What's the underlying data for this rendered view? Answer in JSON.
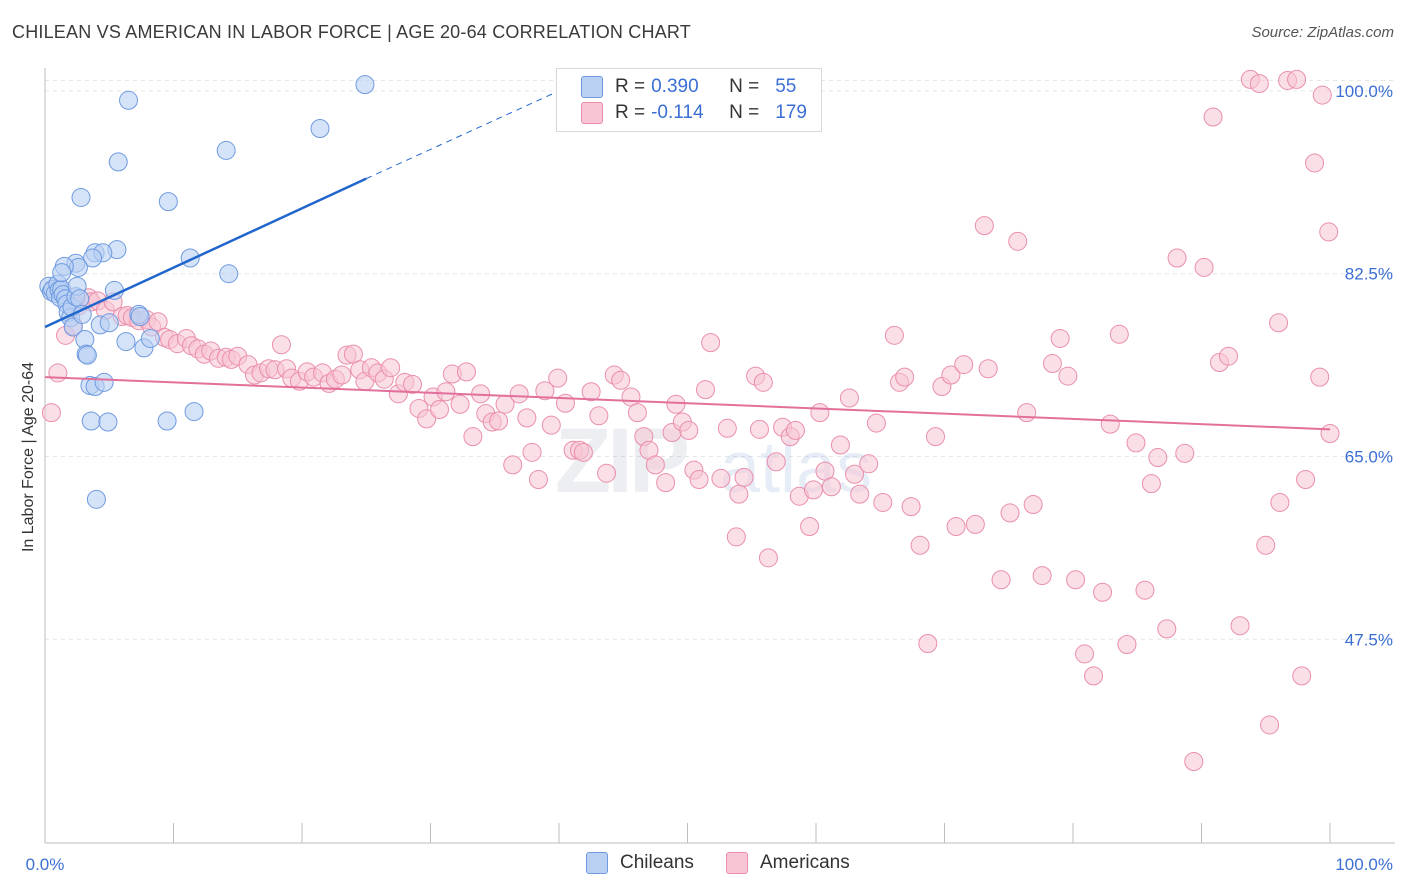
{
  "title": "CHILEAN VS AMERICAN IN LABOR FORCE | AGE 20-64 CORRELATION CHART",
  "source": "Source: ZipAtlas.com",
  "colors": {
    "chilean_fill": "#b9d0f3",
    "chilean_stroke": "#6f9ae0",
    "chilean_line": "#2166cc",
    "american_fill": "#f8c5d4",
    "american_stroke": "#ea8fac",
    "american_line": "#e2709a",
    "tick_label": "#3b6fd4",
    "grid": "#e6e6e6"
  },
  "legend": {
    "rows": [
      {
        "r_label": "R =",
        "r_value": "0.390",
        "n_label": "N =",
        "n_value": "55"
      },
      {
        "r_label": "R =",
        "r_value": "-0.114",
        "n_label": "N =",
        "n_value": "179"
      }
    ]
  },
  "bottom_legend": [
    "Chileans",
    "Americans"
  ],
  "watermark": {
    "a": "ZIP",
    "b": "atlas"
  },
  "chart_data": {
    "type": "scatter",
    "ylabel": "In Labor Force | Age 20-64",
    "xlabel": "",
    "xlim": [
      0,
      100
    ],
    "ylim": [
      28,
      102
    ],
    "x_tick_labels": [
      "0.0%",
      "100.0%"
    ],
    "y_ticks": [
      {
        "value": 47.5,
        "label": "47.5%"
      },
      {
        "value": 65.0,
        "label": "65.0%"
      },
      {
        "value": 82.5,
        "label": "82.5%"
      },
      {
        "value": 100.0,
        "label": "100.0%"
      }
    ],
    "series": [
      {
        "name": "Chileans",
        "r": 0.39,
        "n": 55,
        "trend": {
          "x0": 0,
          "y0": 77.4,
          "x1": 25,
          "y1": 91.6,
          "dash_to_x": 40,
          "dash_to_y": 100.0
        },
        "points": [
          [
            0.3,
            81.3
          ],
          [
            0.5,
            80.8
          ],
          [
            0.6,
            81.0
          ],
          [
            0.8,
            80.6
          ],
          [
            1.0,
            81.5
          ],
          [
            1.1,
            80.9
          ],
          [
            1.2,
            80.2
          ],
          [
            1.3,
            81.0
          ],
          [
            1.4,
            80.5
          ],
          [
            1.6,
            80.1
          ],
          [
            1.7,
            79.6
          ],
          [
            1.8,
            78.8
          ],
          [
            2.0,
            78.3
          ],
          [
            2.1,
            79.3
          ],
          [
            2.2,
            77.4
          ],
          [
            2.4,
            80.3
          ],
          [
            2.5,
            81.3
          ],
          [
            2.7,
            80.1
          ],
          [
            2.9,
            78.6
          ],
          [
            3.1,
            76.2
          ],
          [
            3.2,
            74.8
          ],
          [
            3.3,
            74.7
          ],
          [
            3.5,
            71.8
          ],
          [
            3.6,
            68.4
          ],
          [
            3.9,
            71.7
          ],
          [
            4.0,
            60.9
          ],
          [
            4.3,
            77.6
          ],
          [
            4.6,
            72.1
          ],
          [
            4.9,
            68.3
          ],
          [
            5.0,
            77.8
          ],
          [
            5.4,
            80.9
          ],
          [
            5.6,
            84.8
          ],
          [
            5.7,
            93.2
          ],
          [
            3.9,
            84.5
          ],
          [
            4.5,
            84.5
          ],
          [
            3.7,
            84.0
          ],
          [
            2.4,
            83.5
          ],
          [
            2.6,
            83.1
          ],
          [
            1.5,
            83.2
          ],
          [
            1.3,
            82.6
          ],
          [
            2.8,
            89.8
          ],
          [
            6.5,
            99.1
          ],
          [
            6.3,
            76.0
          ],
          [
            7.3,
            78.6
          ],
          [
            7.7,
            75.4
          ],
          [
            8.2,
            76.3
          ],
          [
            9.6,
            89.4
          ],
          [
            9.5,
            68.4
          ],
          [
            11.3,
            84.0
          ],
          [
            11.6,
            69.3
          ],
          [
            14.1,
            94.3
          ],
          [
            14.3,
            82.5
          ],
          [
            21.4,
            96.4
          ],
          [
            24.9,
            100.6
          ],
          [
            7.4,
            78.4
          ]
        ]
      },
      {
        "name": "Americans",
        "r": -0.114,
        "n": 179,
        "trend": {
          "x0": 0,
          "y0": 72.6,
          "x1": 100,
          "y1": 67.6
        },
        "points": [
          [
            0.5,
            69.2
          ],
          [
            1.0,
            73.0
          ],
          [
            1.6,
            76.6
          ],
          [
            2.2,
            77.5
          ],
          [
            2.6,
            79.4
          ],
          [
            3.4,
            80.2
          ],
          [
            3.6,
            79.8
          ],
          [
            4.1,
            79.9
          ],
          [
            4.7,
            79.0
          ],
          [
            5.3,
            79.8
          ],
          [
            6.0,
            78.4
          ],
          [
            6.4,
            78.5
          ],
          [
            6.8,
            78.3
          ],
          [
            7.3,
            78.0
          ],
          [
            7.9,
            78.1
          ],
          [
            8.3,
            77.4
          ],
          [
            8.8,
            77.9
          ],
          [
            9.3,
            76.4
          ],
          [
            9.7,
            76.2
          ],
          [
            10.3,
            75.8
          ],
          [
            11.0,
            76.3
          ],
          [
            11.4,
            75.6
          ],
          [
            11.9,
            75.3
          ],
          [
            12.4,
            74.8
          ],
          [
            12.9,
            75.1
          ],
          [
            13.5,
            74.4
          ],
          [
            14.1,
            74.5
          ],
          [
            14.5,
            74.3
          ],
          [
            15.0,
            74.6
          ],
          [
            15.8,
            73.8
          ],
          [
            16.3,
            72.8
          ],
          [
            16.8,
            73.0
          ],
          [
            17.4,
            73.4
          ],
          [
            17.9,
            73.3
          ],
          [
            18.4,
            75.7
          ],
          [
            18.8,
            73.4
          ],
          [
            19.2,
            72.5
          ],
          [
            19.8,
            72.2
          ],
          [
            20.4,
            73.1
          ],
          [
            20.9,
            72.6
          ],
          [
            21.6,
            73.0
          ],
          [
            22.1,
            72.0
          ],
          [
            22.6,
            72.4
          ],
          [
            23.1,
            72.8
          ],
          [
            23.5,
            74.7
          ],
          [
            24.0,
            74.8
          ],
          [
            24.5,
            73.3
          ],
          [
            24.9,
            72.2
          ],
          [
            25.4,
            73.5
          ],
          [
            25.9,
            73.0
          ],
          [
            26.4,
            72.4
          ],
          [
            26.9,
            73.5
          ],
          [
            27.5,
            71.0
          ],
          [
            28.0,
            72.1
          ],
          [
            28.6,
            71.9
          ],
          [
            29.1,
            69.6
          ],
          [
            29.7,
            68.6
          ],
          [
            30.2,
            70.7
          ],
          [
            30.7,
            69.5
          ],
          [
            31.2,
            71.2
          ],
          [
            31.7,
            72.9
          ],
          [
            32.3,
            70.0
          ],
          [
            32.8,
            73.1
          ],
          [
            33.3,
            66.9
          ],
          [
            33.9,
            71.0
          ],
          [
            34.3,
            69.1
          ],
          [
            34.8,
            68.3
          ],
          [
            35.3,
            68.4
          ],
          [
            35.8,
            70.0
          ],
          [
            36.4,
            64.2
          ],
          [
            36.9,
            71.0
          ],
          [
            37.5,
            68.7
          ],
          [
            37.9,
            65.4
          ],
          [
            38.4,
            62.8
          ],
          [
            38.9,
            71.3
          ],
          [
            39.4,
            68.0
          ],
          [
            39.9,
            72.5
          ],
          [
            40.5,
            70.1
          ],
          [
            41.1,
            65.6
          ],
          [
            41.6,
            65.6
          ],
          [
            41.9,
            65.4
          ],
          [
            42.5,
            71.2
          ],
          [
            43.1,
            68.9
          ],
          [
            43.7,
            63.4
          ],
          [
            44.3,
            72.8
          ],
          [
            44.8,
            72.3
          ],
          [
            45.6,
            70.7
          ],
          [
            46.1,
            69.2
          ],
          [
            46.6,
            66.9
          ],
          [
            47.0,
            65.6
          ],
          [
            47.5,
            64.2
          ],
          [
            48.3,
            62.5
          ],
          [
            48.8,
            67.3
          ],
          [
            49.1,
            70.0
          ],
          [
            49.6,
            68.3
          ],
          [
            50.1,
            67.5
          ],
          [
            50.5,
            63.7
          ],
          [
            50.9,
            62.8
          ],
          [
            51.4,
            71.4
          ],
          [
            51.8,
            75.9
          ],
          [
            52.6,
            62.9
          ],
          [
            53.1,
            67.7
          ],
          [
            53.8,
            57.3
          ],
          [
            54.0,
            61.4
          ],
          [
            54.4,
            63.0
          ],
          [
            55.3,
            72.7
          ],
          [
            55.6,
            67.6
          ],
          [
            55.9,
            72.1
          ],
          [
            56.3,
            55.3
          ],
          [
            56.9,
            64.5
          ],
          [
            57.4,
            67.8
          ],
          [
            58.0,
            66.9
          ],
          [
            58.4,
            67.5
          ],
          [
            58.7,
            61.2
          ],
          [
            59.5,
            58.3
          ],
          [
            59.8,
            61.8
          ],
          [
            60.3,
            69.2
          ],
          [
            60.7,
            63.6
          ],
          [
            61.2,
            62.1
          ],
          [
            61.9,
            66.1
          ],
          [
            62.6,
            70.6
          ],
          [
            63.0,
            63.3
          ],
          [
            63.4,
            61.4
          ],
          [
            64.1,
            64.3
          ],
          [
            64.7,
            68.2
          ],
          [
            65.2,
            60.6
          ],
          [
            66.1,
            76.6
          ],
          [
            66.5,
            72.1
          ],
          [
            66.9,
            72.6
          ],
          [
            67.4,
            60.2
          ],
          [
            68.1,
            56.5
          ],
          [
            68.7,
            47.1
          ],
          [
            69.3,
            66.9
          ],
          [
            69.8,
            71.7
          ],
          [
            70.5,
            72.8
          ],
          [
            70.9,
            58.3
          ],
          [
            71.5,
            73.8
          ],
          [
            72.4,
            58.5
          ],
          [
            73.1,
            87.1
          ],
          [
            73.4,
            73.4
          ],
          [
            74.4,
            53.2
          ],
          [
            75.1,
            59.6
          ],
          [
            75.7,
            85.6
          ],
          [
            76.4,
            69.2
          ],
          [
            76.9,
            60.4
          ],
          [
            77.6,
            53.6
          ],
          [
            78.4,
            73.9
          ],
          [
            79.0,
            76.3
          ],
          [
            79.6,
            72.7
          ],
          [
            80.2,
            53.2
          ],
          [
            80.9,
            46.1
          ],
          [
            81.6,
            44.0
          ],
          [
            82.3,
            52.0
          ],
          [
            82.9,
            68.1
          ],
          [
            83.6,
            76.7
          ],
          [
            84.2,
            47.0
          ],
          [
            84.9,
            66.3
          ],
          [
            85.6,
            52.2
          ],
          [
            86.1,
            62.4
          ],
          [
            86.6,
            64.9
          ],
          [
            87.3,
            48.5
          ],
          [
            88.1,
            84.0
          ],
          [
            88.7,
            65.3
          ],
          [
            89.4,
            35.8
          ],
          [
            90.2,
            83.1
          ],
          [
            90.9,
            97.5
          ],
          [
            91.4,
            74.0
          ],
          [
            92.1,
            74.6
          ],
          [
            93.0,
            48.8
          ],
          [
            93.8,
            101.1
          ],
          [
            94.5,
            100.7
          ],
          [
            95.3,
            39.3
          ],
          [
            96.0,
            77.8
          ],
          [
            96.7,
            101.0
          ],
          [
            97.4,
            101.1
          ],
          [
            98.1,
            62.8
          ],
          [
            98.8,
            93.1
          ],
          [
            99.4,
            99.6
          ],
          [
            99.9,
            86.5
          ],
          [
            100.0,
            67.2
          ],
          [
            99.2,
            72.6
          ],
          [
            97.8,
            44.0
          ],
          [
            96.1,
            60.6
          ],
          [
            95.0,
            56.5
          ]
        ]
      }
    ]
  }
}
